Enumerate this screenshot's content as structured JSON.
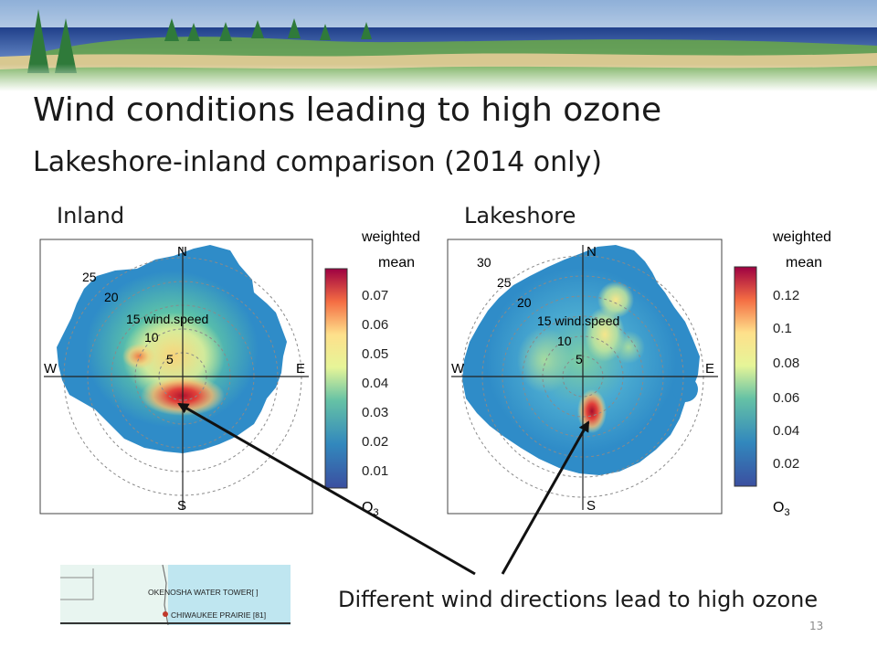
{
  "slide": {
    "title": "Wind conditions leading to high ozone",
    "subtitle": "Lakeshore-inland comparison (2014 only)",
    "caption": "Different wind directions lead to high ozone",
    "page_number": "13"
  },
  "panels": [
    {
      "label": "Inland",
      "directions": [
        "N",
        "E",
        "S",
        "W"
      ],
      "ring_labels": [
        "5",
        "10",
        "15 wind.speed",
        "20",
        "25"
      ],
      "legend_title": [
        "weighted",
        "mean"
      ],
      "legend_ticks": [
        "0.07",
        "0.06",
        "0.05",
        "0.04",
        "0.03",
        "0.02",
        "0.01"
      ],
      "legend_unit": "O",
      "legend_unit_sub": "3"
    },
    {
      "label": "Lakeshore",
      "directions": [
        "N",
        "E",
        "S",
        "W"
      ],
      "ring_labels": [
        "5",
        "10",
        "15 wind.speed",
        "20",
        "25",
        "30"
      ],
      "legend_title": [
        "weighted",
        "mean"
      ],
      "legend_ticks": [
        "0.12",
        "0.1",
        "0.08",
        "0.06",
        "0.04",
        "0.02"
      ],
      "legend_unit": "O",
      "legend_unit_sub": "3"
    }
  ],
  "inset_map": {
    "labels": [
      "OKENOSHA WATER TOWER[ ]",
      "CHIWAUKEE PRAIRIE [81]"
    ]
  },
  "colors": {
    "accent_blue": "#2a5aa8",
    "banner_green": "#3c8a3c"
  }
}
